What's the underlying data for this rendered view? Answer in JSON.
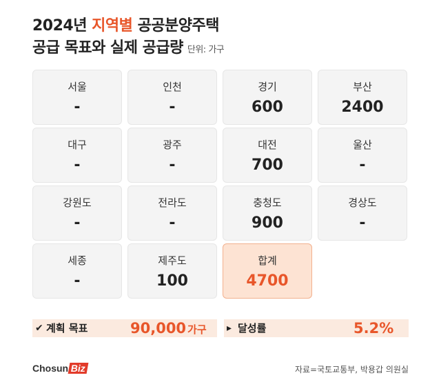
{
  "header": {
    "title_year": "2024년",
    "title_highlight": "지역별",
    "title_rest": "공공분양주택",
    "title_line2": "공급 목표와 실제 공급량",
    "unit": "단위: 가구"
  },
  "chart_data": {
    "type": "table",
    "regions": [
      {
        "name": "서울",
        "value": "-"
      },
      {
        "name": "인천",
        "value": "-"
      },
      {
        "name": "경기",
        "value": "600"
      },
      {
        "name": "부산",
        "value": "2400"
      },
      {
        "name": "대구",
        "value": "-"
      },
      {
        "name": "광주",
        "value": "-"
      },
      {
        "name": "대전",
        "value": "700"
      },
      {
        "name": "울산",
        "value": "-"
      },
      {
        "name": "강원도",
        "value": "-"
      },
      {
        "name": "전라도",
        "value": "-"
      },
      {
        "name": "충청도",
        "value": "900"
      },
      {
        "name": "경상도",
        "value": "-"
      },
      {
        "name": "세종",
        "value": "-"
      },
      {
        "name": "제주도",
        "value": "100"
      }
    ],
    "total": {
      "name": "합계",
      "value": "4700"
    }
  },
  "summary": {
    "plan_mark": "✔",
    "plan_label": "계획 목표",
    "plan_value": "90,000",
    "plan_unit": "가구",
    "rate_mark": "▸",
    "rate_label": "달성률",
    "rate_value": "5.2%"
  },
  "footer": {
    "logo_main": "Chosun",
    "logo_biz": "Biz",
    "source": "자료=국토교통부, 박용갑 의원실"
  },
  "colors": {
    "accent": "#e8562a",
    "cell_bg": "#f4f4f4",
    "total_bg": "#fde3d3",
    "bar_bg": "#fbeadf"
  }
}
